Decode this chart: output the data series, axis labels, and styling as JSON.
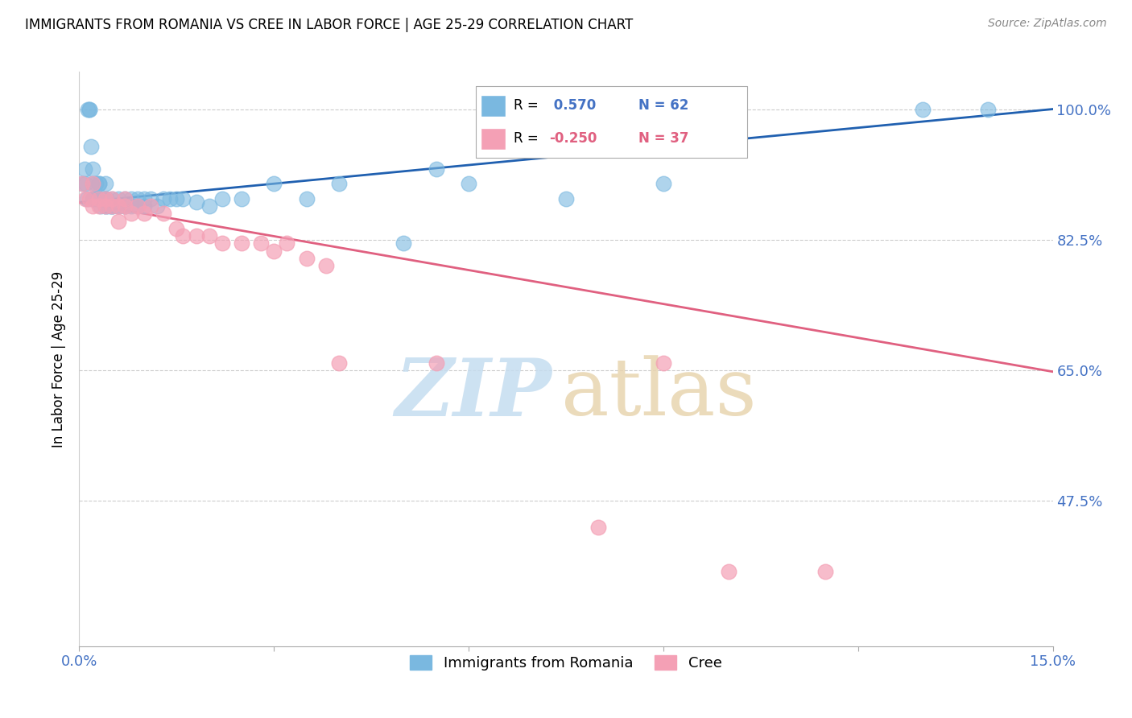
{
  "title": "IMMIGRANTS FROM ROMANIA VS CREE IN LABOR FORCE | AGE 25-29 CORRELATION CHART",
  "source": "Source: ZipAtlas.com",
  "ylabel_label": "In Labor Force | Age 25-29",
  "ytick_labels": [
    "100.0%",
    "82.5%",
    "65.0%",
    "47.5%"
  ],
  "ytick_values": [
    1.0,
    0.825,
    0.65,
    0.475
  ],
  "xmin": 0.0,
  "xmax": 0.15,
  "ymin": 0.28,
  "ymax": 1.05,
  "romania_color": "#7ab8e0",
  "cree_color": "#f4a0b5",
  "romania_line_color": "#2060b0",
  "cree_line_color": "#e06080",
  "romania_R": 0.57,
  "romania_N": 62,
  "cree_R": -0.25,
  "cree_N": 37,
  "legend_label_romania": "Immigrants from Romania",
  "legend_label_cree": "Cree",
  "romania_x": [
    0.0005,
    0.0008,
    0.001,
    0.0012,
    0.0013,
    0.0015,
    0.0016,
    0.0018,
    0.002,
    0.002,
    0.002,
    0.0022,
    0.0025,
    0.0025,
    0.003,
    0.003,
    0.003,
    0.003,
    0.0033,
    0.0035,
    0.004,
    0.004,
    0.004,
    0.004,
    0.0042,
    0.0045,
    0.005,
    0.005,
    0.005,
    0.005,
    0.006,
    0.006,
    0.006,
    0.007,
    0.007,
    0.007,
    0.008,
    0.008,
    0.009,
    0.009,
    0.01,
    0.01,
    0.011,
    0.012,
    0.013,
    0.014,
    0.015,
    0.016,
    0.018,
    0.02,
    0.022,
    0.025,
    0.03,
    0.035,
    0.04,
    0.05,
    0.055,
    0.06,
    0.075,
    0.09,
    0.13,
    0.14
  ],
  "romania_y": [
    0.9,
    0.92,
    0.9,
    0.88,
    1.0,
    1.0,
    1.0,
    0.95,
    0.88,
    0.9,
    0.92,
    0.88,
    0.88,
    0.9,
    0.88,
    0.88,
    0.9,
    0.9,
    0.87,
    0.88,
    0.87,
    0.87,
    0.88,
    0.9,
    0.88,
    0.87,
    0.87,
    0.87,
    0.87,
    0.88,
    0.87,
    0.88,
    0.87,
    0.87,
    0.88,
    0.87,
    0.87,
    0.88,
    0.87,
    0.88,
    0.87,
    0.88,
    0.88,
    0.87,
    0.88,
    0.88,
    0.88,
    0.88,
    0.875,
    0.87,
    0.88,
    0.88,
    0.9,
    0.88,
    0.9,
    0.82,
    0.92,
    0.9,
    0.88,
    0.9,
    1.0,
    1.0
  ],
  "cree_x": [
    0.0005,
    0.001,
    0.0015,
    0.002,
    0.002,
    0.003,
    0.003,
    0.004,
    0.004,
    0.005,
    0.005,
    0.006,
    0.006,
    0.007,
    0.007,
    0.008,
    0.009,
    0.01,
    0.011,
    0.013,
    0.015,
    0.016,
    0.018,
    0.02,
    0.022,
    0.025,
    0.028,
    0.03,
    0.032,
    0.035,
    0.038,
    0.04,
    0.055,
    0.08,
    0.09,
    0.1,
    0.115
  ],
  "cree_y": [
    0.9,
    0.88,
    0.88,
    0.9,
    0.87,
    0.87,
    0.88,
    0.87,
    0.88,
    0.87,
    0.88,
    0.85,
    0.87,
    0.87,
    0.88,
    0.86,
    0.87,
    0.86,
    0.87,
    0.86,
    0.84,
    0.83,
    0.83,
    0.83,
    0.82,
    0.82,
    0.82,
    0.81,
    0.82,
    0.8,
    0.79,
    0.66,
    0.66,
    0.44,
    0.66,
    0.38,
    0.38
  ]
}
